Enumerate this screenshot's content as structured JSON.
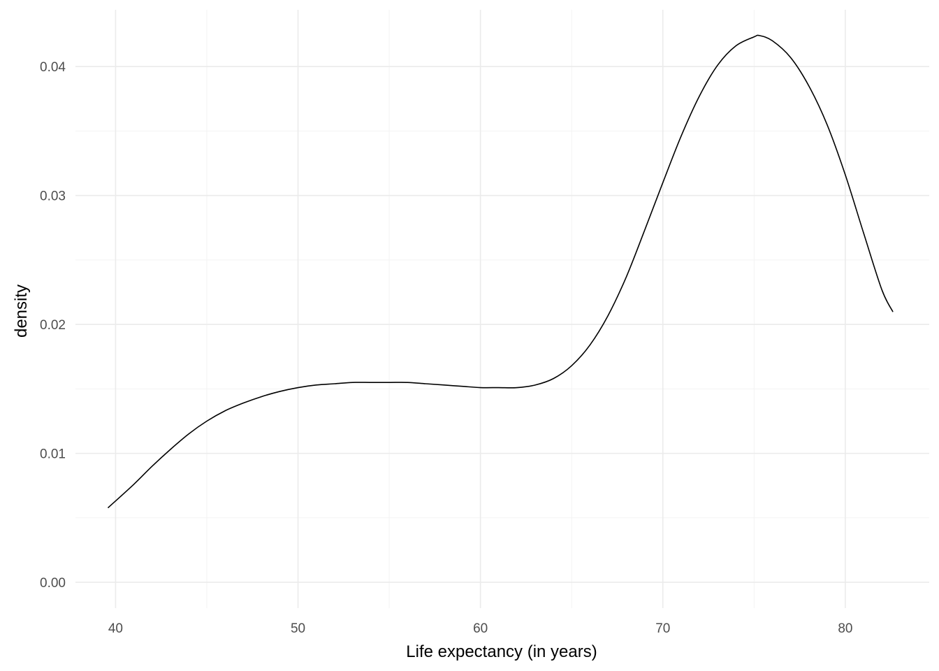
{
  "chart_data": {
    "type": "line",
    "title": "",
    "xlabel": "Life expectancy (in years)",
    "ylabel": "density",
    "xlim": [
      37.8,
      84.6
    ],
    "ylim": [
      -0.002,
      0.0444
    ],
    "x_ticks": [
      40,
      50,
      60,
      70,
      80
    ],
    "x_tick_labels": [
      "40",
      "50",
      "60",
      "70",
      "80"
    ],
    "y_ticks": [
      0,
      0.01,
      0.02,
      0.03,
      0.04
    ],
    "y_tick_labels": [
      "0.00",
      "0.01",
      "0.02",
      "0.03",
      "0.04"
    ],
    "grid": true,
    "line_color": "#000000",
    "series": [
      {
        "x": [
          39.6,
          41,
          42,
          43,
          44,
          45,
          46,
          47,
          48,
          49,
          50,
          51,
          52,
          53,
          54,
          55,
          56,
          57,
          58,
          59,
          60,
          61,
          62,
          63,
          64,
          65,
          66,
          67,
          68,
          69,
          70,
          71,
          72,
          73,
          74,
          75,
          75.3,
          76,
          77,
          78,
          79,
          80,
          81,
          82,
          82.6
        ],
        "y": [
          0.0058,
          0.0076,
          0.009,
          0.0103,
          0.0115,
          0.0125,
          0.0133,
          0.0139,
          0.0144,
          0.0148,
          0.0151,
          0.0153,
          0.0154,
          0.0155,
          0.0155,
          0.0155,
          0.0155,
          0.0154,
          0.0153,
          0.0152,
          0.0151,
          0.0151,
          0.0151,
          0.0153,
          0.0158,
          0.0168,
          0.0184,
          0.0207,
          0.0237,
          0.0273,
          0.031,
          0.0346,
          0.0377,
          0.0401,
          0.0416,
          0.0423,
          0.0424,
          0.042,
          0.0407,
          0.0385,
          0.0355,
          0.0316,
          0.0271,
          0.0227,
          0.021
        ]
      }
    ]
  }
}
